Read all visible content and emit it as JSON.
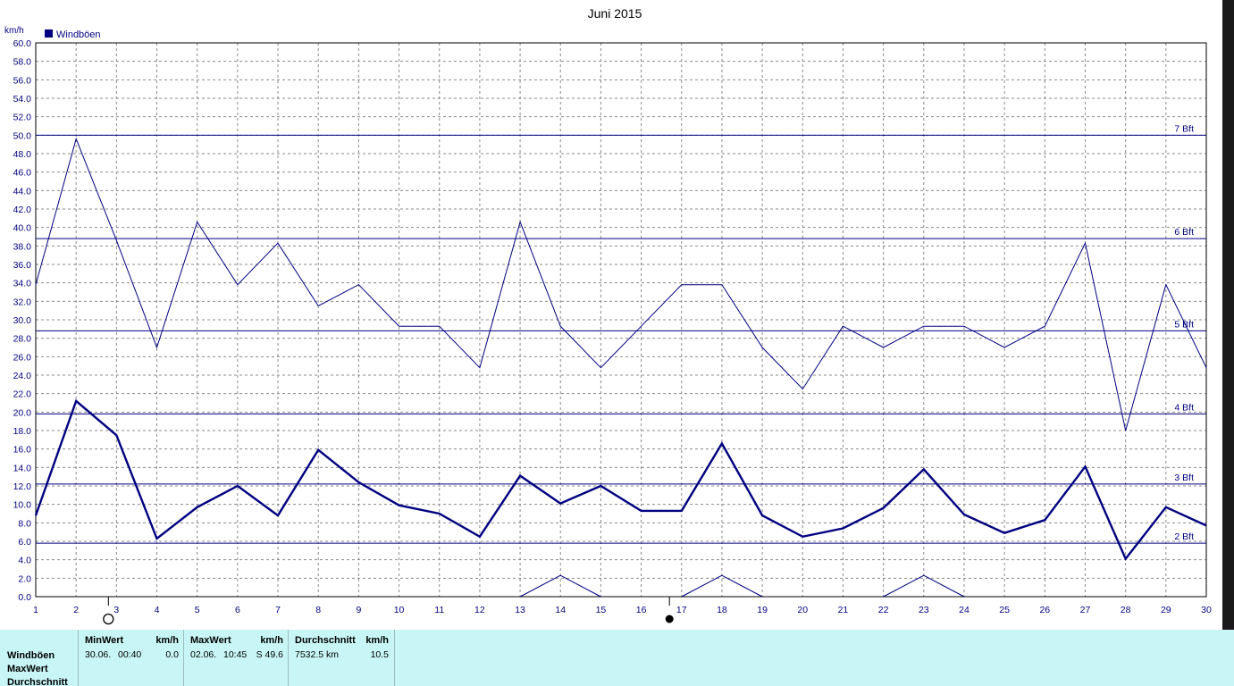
{
  "chart_data": {
    "type": "line",
    "title": "Juni 2015",
    "ylabel": "km/h",
    "xlabel": "",
    "legend": {
      "label": "Windböen",
      "placement": "top-left",
      "color": "#000080"
    },
    "ylim": [
      0,
      60
    ],
    "xlim": [
      1,
      30
    ],
    "y_ticks": [
      "0.0",
      "2.0",
      "4.0",
      "6.0",
      "8.0",
      "10.0",
      "12.0",
      "14.0",
      "16.0",
      "18.0",
      "20.0",
      "22.0",
      "24.0",
      "26.0",
      "28.0",
      "30.0",
      "32.0",
      "34.0",
      "36.0",
      "38.0",
      "40.0",
      "42.0",
      "44.0",
      "46.0",
      "48.0",
      "50.0",
      "52.0",
      "54.0",
      "56.0",
      "58.0",
      "60.0"
    ],
    "x_ticks": [
      "1",
      "2",
      "3",
      "4",
      "5",
      "6",
      "7",
      "8",
      "9",
      "10",
      "11",
      "12",
      "13",
      "14",
      "15",
      "16",
      "17",
      "18",
      "19",
      "20",
      "21",
      "22",
      "23",
      "24",
      "25",
      "26",
      "27",
      "28",
      "29",
      "30"
    ],
    "grid": true,
    "series": [
      {
        "name": "Windböen",
        "role": "max",
        "color": "#000080",
        "x": [
          1,
          2,
          3,
          4,
          5,
          6,
          7,
          8,
          9,
          10,
          11,
          12,
          13,
          14,
          15,
          16,
          17,
          18,
          19,
          20,
          21,
          22,
          23,
          24,
          25,
          26,
          27,
          28,
          29,
          30
        ],
        "values": [
          33.8,
          49.6,
          38.6,
          27.0,
          40.6,
          33.8,
          38.3,
          31.5,
          33.8,
          29.3,
          29.3,
          24.8,
          40.6,
          29.3,
          24.8,
          29.3,
          33.8,
          33.8,
          27.0,
          22.5,
          29.3,
          27.0,
          29.3,
          29.3,
          27.0,
          29.3,
          38.3,
          18.0,
          33.8,
          24.8
        ]
      },
      {
        "role": "average",
        "color": "#000080",
        "x": [
          1,
          2,
          3,
          4,
          5,
          6,
          7,
          8,
          9,
          10,
          11,
          12,
          13,
          14,
          15,
          16,
          17,
          18,
          19,
          20,
          21,
          22,
          23,
          24,
          25,
          26,
          27,
          28,
          29,
          30
        ],
        "values": [
          8.8,
          21.2,
          17.5,
          6.3,
          9.7,
          12.0,
          8.8,
          15.9,
          12.4,
          9.9,
          9.0,
          6.5,
          13.1,
          10.1,
          12.0,
          9.3,
          9.3,
          16.6,
          8.8,
          6.5,
          7.4,
          9.6,
          13.8,
          8.9,
          6.9,
          8.3,
          14.1,
          4.1,
          9.7,
          7.7
        ]
      },
      {
        "role": "min",
        "color": "#000080",
        "x": [
          13,
          14,
          15,
          17,
          18,
          19,
          22,
          23,
          24
        ],
        "values": [
          0.0,
          2.3,
          0.0,
          0.0,
          2.3,
          0.0,
          0.0,
          2.3,
          0.0
        ]
      }
    ],
    "reference_lines": [
      {
        "label": "2 Bft",
        "value": 5.8
      },
      {
        "label": "3 Bft",
        "value": 12.2
      },
      {
        "label": "4 Bft",
        "value": 19.8
      },
      {
        "label": "5 Bft",
        "value": 28.8
      },
      {
        "label": "6 Bft",
        "value": 38.8
      },
      {
        "label": "7 Bft",
        "value": 50.0
      }
    ],
    "moon_phases": [
      {
        "day": 2.8,
        "phase": "full-moon"
      },
      {
        "day": 16.7,
        "phase": "new-moon"
      }
    ]
  },
  "footer": {
    "row_labels": [
      "Windböen",
      "MaxWert",
      "Durchschnitt"
    ],
    "minwert": {
      "header": "MinWert",
      "unit": "km/h",
      "date": "30.06.",
      "time": "00:40",
      "value": "0.0"
    },
    "maxwert": {
      "header": "MaxWert",
      "unit": "km/h",
      "date": "02.06.",
      "time": "10:45",
      "value": "S 49.6"
    },
    "durchschnitt": {
      "header": "Durchschnitt",
      "unit": "km/h",
      "distance": "7532.5 km",
      "value": "10.5"
    }
  }
}
